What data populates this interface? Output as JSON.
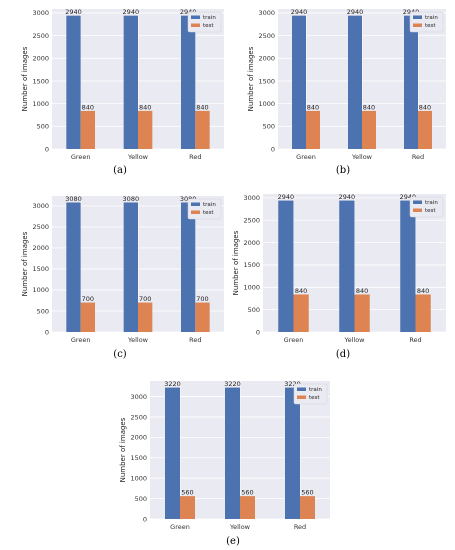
{
  "colors": {
    "train": "#4C72B0",
    "test": "#DD8452",
    "plot_bg": "#EAEAF2",
    "grid": "#ffffff"
  },
  "chart_data": [
    {
      "type": "bar",
      "caption": "(a)",
      "categories": [
        "Green",
        "Yellow",
        "Red"
      ],
      "series": [
        {
          "name": "train",
          "values": [
            2940,
            2940,
            2940
          ]
        },
        {
          "name": "test",
          "values": [
            840,
            840,
            840
          ]
        }
      ],
      "ylabel": "Number of images",
      "yticks": [
        0,
        500,
        1000,
        1500,
        2000,
        2500,
        3000
      ],
      "ylim": [
        0,
        3087
      ],
      "grid": true,
      "legend": "top-right"
    },
    {
      "type": "bar",
      "caption": "(b)",
      "categories": [
        "Green",
        "Yellow",
        "Red"
      ],
      "series": [
        {
          "name": "train",
          "values": [
            2940,
            2940,
            2940
          ]
        },
        {
          "name": "test",
          "values": [
            840,
            840,
            840
          ]
        }
      ],
      "ylabel": "Number of images",
      "yticks": [
        0,
        500,
        1000,
        1500,
        2000,
        2500,
        3000
      ],
      "ylim": [
        0,
        3087
      ],
      "grid": true,
      "legend": "top-right"
    },
    {
      "type": "bar",
      "caption": "(c)",
      "categories": [
        "Green",
        "Yellow",
        "Red"
      ],
      "series": [
        {
          "name": "train",
          "values": [
            3080,
            3080,
            3080
          ]
        },
        {
          "name": "test",
          "values": [
            700,
            700,
            700
          ]
        }
      ],
      "ylabel": "Number of images",
      "yticks": [
        0,
        500,
        1000,
        1500,
        2000,
        2500,
        3000
      ],
      "ylim": [
        0,
        3234
      ],
      "grid": true,
      "legend": "top-right"
    },
    {
      "type": "bar",
      "caption": "(d)",
      "categories": [
        "Green",
        "Yellow",
        "Red"
      ],
      "series": [
        {
          "name": "train",
          "values": [
            2940,
            2940,
            2940
          ]
        },
        {
          "name": "test",
          "values": [
            840,
            840,
            840
          ]
        }
      ],
      "ylabel": "Number of images",
      "yticks": [
        0,
        500,
        1000,
        1500,
        2000,
        2500,
        3000
      ],
      "ylim": [
        0,
        3087
      ],
      "grid": true,
      "legend": "top-right"
    },
    {
      "type": "bar",
      "caption": "(e)",
      "categories": [
        "Green",
        "Yellow",
        "Red"
      ],
      "series": [
        {
          "name": "train",
          "values": [
            3220,
            3220,
            3220
          ]
        },
        {
          "name": "test",
          "values": [
            560,
            560,
            560
          ]
        }
      ],
      "ylabel": "Number of images",
      "yticks": [
        0,
        500,
        1000,
        1500,
        2000,
        2500,
        3000
      ],
      "ylim": [
        0,
        3381
      ],
      "grid": true,
      "legend": "top-right"
    }
  ]
}
